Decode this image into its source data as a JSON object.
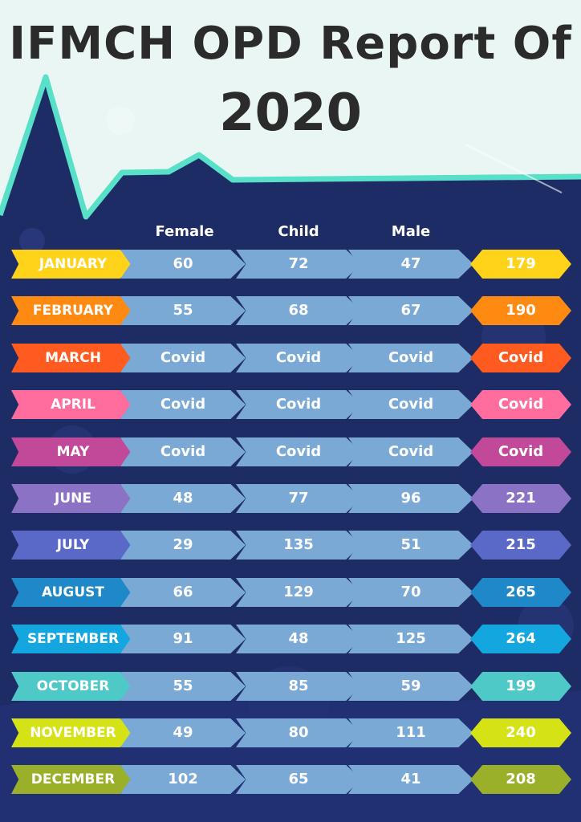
{
  "title_line1": "IFMCH OPD Report Of",
  "title_line2": "2020",
  "colors": {
    "top_background": "#e9f6f3",
    "navy_background": "#1e2c66",
    "pulse_line": "#58e0c8",
    "value_cell": "#7aa9d6"
  },
  "chart_data": {
    "type": "table",
    "columns": [
      "Female",
      "Child",
      "Male"
    ],
    "rows": [
      {
        "month": "JANUARY",
        "female": "60",
        "child": "72",
        "male": "47",
        "total": "179",
        "color": "#ffd31a"
      },
      {
        "month": "FEBRUARY",
        "female": "55",
        "child": "68",
        "male": "67",
        "total": "190",
        "color": "#ff8a12"
      },
      {
        "month": "MARCH",
        "female": "Covid",
        "child": "Covid",
        "male": "Covid",
        "total": "Covid",
        "color": "#ff5a1f"
      },
      {
        "month": "APRIL",
        "female": "Covid",
        "child": "Covid",
        "male": "Covid",
        "total": "Covid",
        "color": "#ff6c9e"
      },
      {
        "month": "MAY",
        "female": "Covid",
        "child": "Covid",
        "male": "Covid",
        "total": "Covid",
        "color": "#c2499a"
      },
      {
        "month": "JUNE",
        "female": "48",
        "child": "77",
        "male": "96",
        "total": "221",
        "color": "#8c72c4"
      },
      {
        "month": "JULY",
        "female": "29",
        "child": "135",
        "male": "51",
        "total": "215",
        "color": "#5a69c8"
      },
      {
        "month": "AUGUST",
        "female": "66",
        "child": "129",
        "male": "70",
        "total": "265",
        "color": "#1e88c8"
      },
      {
        "month": "SEPTEMBER",
        "female": "91",
        "child": "48",
        "male": "125",
        "total": "264",
        "color": "#13a6df"
      },
      {
        "month": "OCTOBER",
        "female": "55",
        "child": "85",
        "male": "59",
        "total": "199",
        "color": "#4fc8c8"
      },
      {
        "month": "NOVEMBER",
        "female": "49",
        "child": "80",
        "male": "111",
        "total": "240",
        "color": "#d4e216"
      },
      {
        "month": "DECEMBER",
        "female": "102",
        "child": "65",
        "male": "41",
        "total": "208",
        "color": "#9ab02a"
      }
    ]
  }
}
